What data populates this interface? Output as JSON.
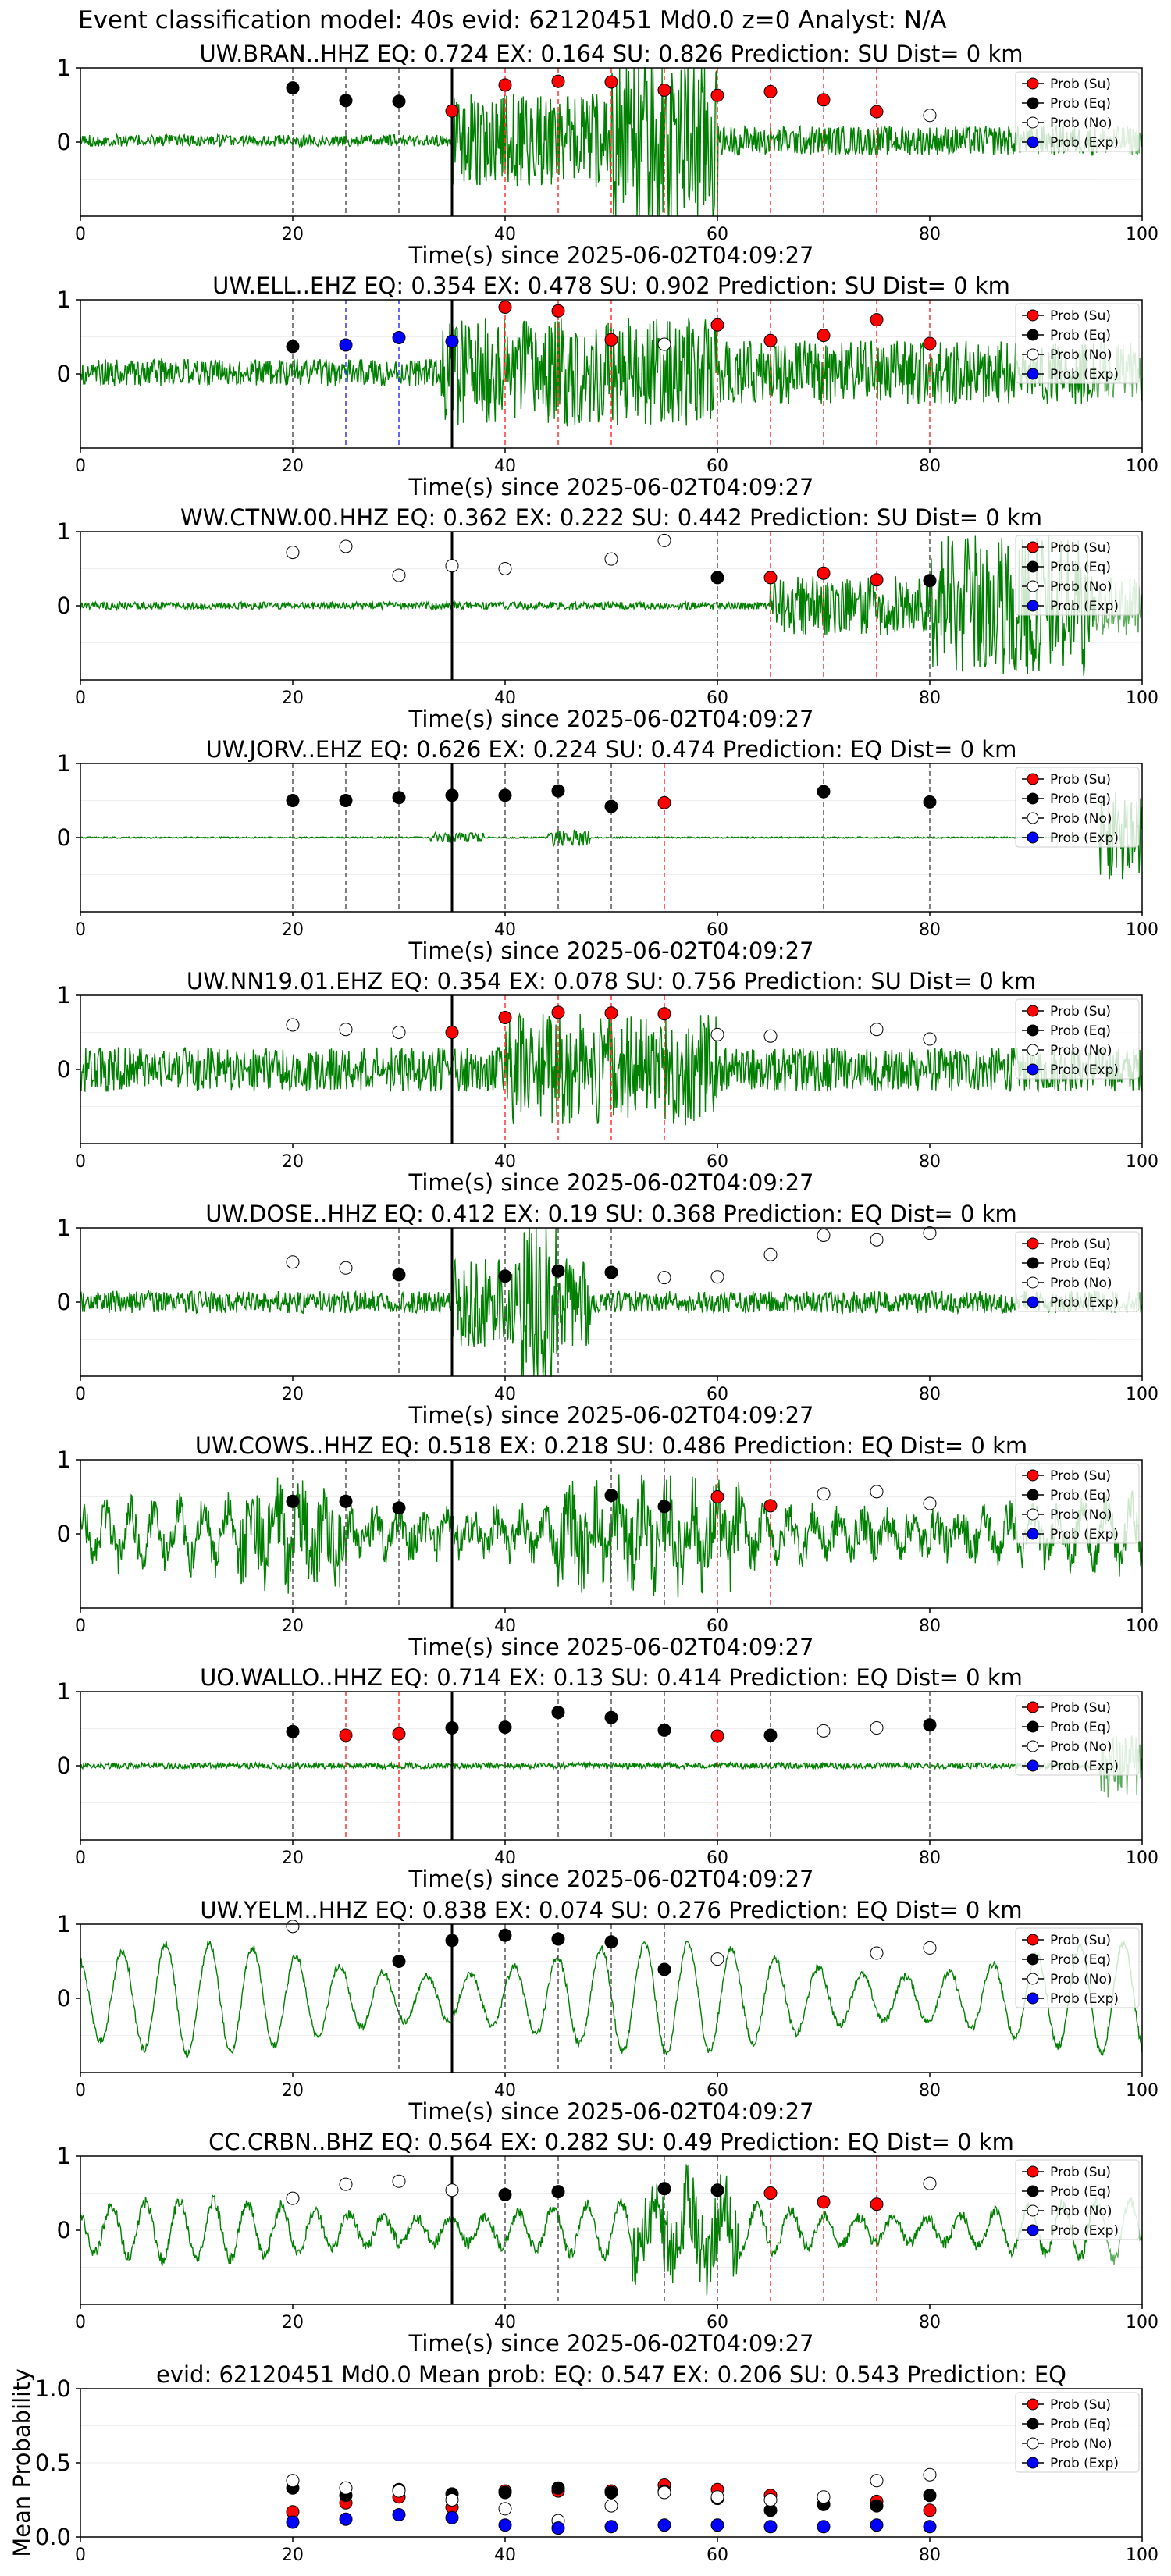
{
  "suptitle": "Event classification model: 40s evid: 62120451 Md0.0 z=0 Analyst: N/A",
  "legend": [
    "Prob (Su)",
    "Prob (Eq)",
    "Prob (No)",
    "Prob (Exp)"
  ],
  "colors": {
    "su": "#ff0000",
    "eq": "#000000",
    "no": "#ffffff",
    "exp": "#0000ff",
    "trace": "#008000",
    "eq_line": "#555555",
    "su_line": "#ff3333",
    "exp_line": "#3333ff"
  },
  "chart_data": [
    {
      "type": "line",
      "title": "UW.BRAN..HHZ    EQ: 0.724   EX: 0.164   SU: 0.826    Prediction: SU     Dist= 0 km",
      "xlabel": "Time(s) since 2025-06-02T04:09:27",
      "xlim": [
        0,
        100
      ],
      "ylim": [
        -1,
        1
      ],
      "xticks": [
        0,
        20,
        40,
        60,
        80,
        100
      ],
      "yticks": [
        0,
        1
      ],
      "event_time": 35,
      "trace": {
        "base": 0.02,
        "noise": 0.08,
        "bursts": [
          [
            35,
            60,
            0.55
          ],
          [
            50,
            60,
            0.65
          ],
          [
            60,
            100,
            0.12
          ]
        ],
        "period": 0,
        "amp": 0,
        "taper_end": 0.2
      },
      "points": [
        [
          20,
          "eq",
          0.73
        ],
        [
          25,
          "eq",
          0.56
        ],
        [
          30,
          "eq",
          0.55
        ],
        [
          35,
          "su",
          0.42
        ],
        [
          40,
          "su",
          0.77
        ],
        [
          45,
          "su",
          0.82
        ],
        [
          50,
          "su",
          0.81
        ],
        [
          55,
          "su",
          0.7
        ],
        [
          60,
          "su",
          0.63
        ],
        [
          65,
          "su",
          0.68
        ],
        [
          70,
          "su",
          0.57
        ],
        [
          75,
          "su",
          0.41
        ],
        [
          80,
          "no",
          0.36
        ]
      ]
    },
    {
      "type": "line",
      "title": "UW.ELL..EHZ   EQ: 0.354  EX: 0.478  SU: 0.902   Prediction: SU    Dist= 0 km",
      "xlabel": "Time(s) since 2025-06-02T04:09:27",
      "xlim": [
        0,
        100
      ],
      "ylim": [
        -1,
        1
      ],
      "xticks": [
        0,
        20,
        40,
        60,
        80,
        100
      ],
      "yticks": [
        0,
        1
      ],
      "event_time": 35,
      "trace": {
        "base": 0.02,
        "noise": 0.18,
        "bursts": [
          [
            34,
            60,
            0.55
          ],
          [
            60,
            100,
            0.25
          ]
        ],
        "period": 0,
        "amp": 0,
        "taper_end": 0.15
      },
      "points": [
        [
          20,
          "eq",
          0.37
        ],
        [
          25,
          "exp",
          0.39
        ],
        [
          30,
          "exp",
          0.49
        ],
        [
          35,
          "exp",
          0.44
        ],
        [
          40,
          "su",
          0.9
        ],
        [
          45,
          "su",
          0.85
        ],
        [
          50,
          "su",
          0.46
        ],
        [
          55,
          "no",
          0.4
        ],
        [
          60,
          "su",
          0.66
        ],
        [
          65,
          "su",
          0.45
        ],
        [
          70,
          "su",
          0.52
        ],
        [
          75,
          "su",
          0.73
        ],
        [
          80,
          "su",
          0.41
        ]
      ]
    },
    {
      "type": "line",
      "title": "WW.CTNW.00.HHZ    EQ: 0.362   EX: 0.222   SU: 0.442    Prediction: SU     Dist= 0 km",
      "xlabel": "Time(s) since 2025-06-02T04:09:27",
      "xlim": [
        0,
        100
      ],
      "ylim": [
        -1,
        1
      ],
      "xticks": [
        0,
        20,
        40,
        60,
        80,
        100
      ],
      "yticks": [
        0,
        1
      ],
      "event_time": 35,
      "trace": {
        "base": 0.0,
        "noise": 0.05,
        "bursts": [
          [
            65,
            100,
            0.35
          ],
          [
            80,
            95,
            0.55
          ]
        ],
        "period": 0,
        "amp": 0,
        "taper_end": 0.3
      },
      "points": [
        [
          20,
          "no",
          0.72
        ],
        [
          25,
          "no",
          0.8
        ],
        [
          30,
          "no",
          0.41
        ],
        [
          35,
          "no",
          0.54
        ],
        [
          40,
          "no",
          0.5
        ],
        [
          50,
          "no",
          0.63
        ],
        [
          55,
          "no",
          0.88
        ],
        [
          60,
          "eq",
          0.38
        ],
        [
          65,
          "su",
          0.38
        ],
        [
          70,
          "su",
          0.44
        ],
        [
          75,
          "su",
          0.35
        ],
        [
          80,
          "eq",
          0.34
        ]
      ]
    },
    {
      "type": "line",
      "title": "UW.JORV..EHZ    EQ: 0.626   EX: 0.224   SU: 0.474    Prediction: EQ     Dist= 0 km",
      "xlabel": "Time(s) since 2025-06-02T04:09:27",
      "xlim": [
        0,
        100
      ],
      "ylim": [
        -1,
        1
      ],
      "xticks": [
        0,
        20,
        40,
        60,
        80,
        100
      ],
      "yticks": [
        0,
        1
      ],
      "event_time": 35,
      "trace": {
        "base": 0.0,
        "noise": 0.01,
        "bursts": [
          [
            33,
            38,
            0.06
          ],
          [
            44,
            48,
            0.1
          ],
          [
            96,
            100,
            0.6
          ]
        ],
        "period": 0,
        "amp": 0,
        "taper_end": 0
      },
      "points": [
        [
          20,
          "eq",
          0.5
        ],
        [
          25,
          "eq",
          0.5
        ],
        [
          30,
          "eq",
          0.54
        ],
        [
          35,
          "eq",
          0.57
        ],
        [
          40,
          "eq",
          0.57
        ],
        [
          45,
          "eq",
          0.63
        ],
        [
          50,
          "eq",
          0.42
        ],
        [
          55,
          "su",
          0.47
        ],
        [
          70,
          "eq",
          0.62
        ],
        [
          80,
          "eq",
          0.48
        ]
      ]
    },
    {
      "type": "line",
      "title": "UW.NN19.01.EHZ    EQ: 0.354   EX: 0.078   SU: 0.756    Prediction: SU     Dist= 0 km",
      "xlabel": "Time(s) since 2025-06-02T04:09:27",
      "xlim": [
        0,
        100
      ],
      "ylim": [
        -1,
        1
      ],
      "xticks": [
        0,
        20,
        40,
        60,
        80,
        100
      ],
      "yticks": [
        0,
        1
      ],
      "event_time": 35,
      "trace": {
        "base": 0.0,
        "noise": 0.3,
        "bursts": [
          [
            40,
            60,
            0.45
          ]
        ],
        "period": 0,
        "amp": 0,
        "taper_end": 0
      },
      "points": [
        [
          20,
          "no",
          0.6
        ],
        [
          25,
          "no",
          0.54
        ],
        [
          30,
          "no",
          0.5
        ],
        [
          35,
          "su",
          0.5
        ],
        [
          40,
          "su",
          0.7
        ],
        [
          45,
          "su",
          0.77
        ],
        [
          50,
          "su",
          0.76
        ],
        [
          55,
          "su",
          0.75
        ],
        [
          60,
          "no",
          0.47
        ],
        [
          65,
          "no",
          0.45
        ],
        [
          75,
          "no",
          0.54
        ],
        [
          80,
          "no",
          0.41
        ]
      ]
    },
    {
      "type": "line",
      "title": "UW.DOSE..HHZ    EQ: 0.412   EX: 0.19   SU: 0.368    Prediction: EQ     Dist= 0 km",
      "xlabel": "Time(s) since 2025-06-02T04:09:27",
      "xlim": [
        0,
        100
      ],
      "ylim": [
        -1,
        1
      ],
      "xticks": [
        0,
        20,
        40,
        60,
        80,
        100
      ],
      "yticks": [
        0,
        1
      ],
      "event_time": 35,
      "trace": {
        "base": 0.0,
        "noise": 0.15,
        "bursts": [
          [
            35,
            48,
            0.45
          ],
          [
            41,
            45,
            0.7
          ]
        ],
        "period": 0,
        "amp": 0,
        "taper_end": 0.15
      },
      "points": [
        [
          20,
          "no",
          0.54
        ],
        [
          25,
          "no",
          0.46
        ],
        [
          30,
          "eq",
          0.37
        ],
        [
          40,
          "eq",
          0.35
        ],
        [
          45,
          "eq",
          0.42
        ],
        [
          50,
          "eq",
          0.4
        ],
        [
          55,
          "no",
          0.33
        ],
        [
          60,
          "no",
          0.34
        ],
        [
          65,
          "no",
          0.64
        ],
        [
          70,
          "no",
          0.9
        ],
        [
          75,
          "no",
          0.84
        ],
        [
          80,
          "no",
          0.93
        ]
      ]
    },
    {
      "type": "line",
      "title": "UW.COWS..HHZ    EQ: 0.518   EX: 0.218   SU: 0.486    Prediction: EQ     Dist= 0 km",
      "xlabel": "Time(s) since 2025-06-02T04:09:27",
      "xlim": [
        0,
        100
      ],
      "ylim": [
        -1,
        1
      ],
      "xticks": [
        0,
        20,
        40,
        60,
        80,
        100
      ],
      "yticks": [
        0,
        1
      ],
      "event_time": 35,
      "trace": {
        "base": 0.0,
        "noise": 0.25,
        "bursts": [
          [
            15,
            25,
            0.3
          ],
          [
            45,
            62,
            0.3
          ]
        ],
        "period": 2.3,
        "amp": 0.35,
        "taper_end": 0
      },
      "points": [
        [
          20,
          "eq",
          0.44
        ],
        [
          25,
          "eq",
          0.44
        ],
        [
          30,
          "eq",
          0.35
        ],
        [
          50,
          "eq",
          0.52
        ],
        [
          55,
          "eq",
          0.37
        ],
        [
          60,
          "su",
          0.5
        ],
        [
          65,
          "su",
          0.38
        ],
        [
          70,
          "no",
          0.54
        ],
        [
          75,
          "no",
          0.57
        ],
        [
          80,
          "no",
          0.41
        ]
      ]
    },
    {
      "type": "line",
      "title": "UO.WALLO..HHZ    EQ: 0.714   EX: 0.13   SU: 0.414    Prediction: EQ     Dist= 0 km",
      "xlabel": "Time(s) since 2025-06-02T04:09:27",
      "xlim": [
        0,
        100
      ],
      "ylim": [
        -1,
        1
      ],
      "xticks": [
        0,
        20,
        40,
        60,
        80,
        100
      ],
      "yticks": [
        0,
        1
      ],
      "event_time": 35,
      "trace": {
        "base": 0.0,
        "noise": 0.04,
        "bursts": [
          [
            96,
            100,
            0.4
          ]
        ],
        "period": 0,
        "amp": 0,
        "taper_end": 0.3
      },
      "points": [
        [
          20,
          "eq",
          0.46
        ],
        [
          25,
          "su",
          0.41
        ],
        [
          30,
          "su",
          0.43
        ],
        [
          35,
          "eq",
          0.51
        ],
        [
          40,
          "eq",
          0.52
        ],
        [
          45,
          "eq",
          0.72
        ],
        [
          50,
          "eq",
          0.65
        ],
        [
          55,
          "eq",
          0.48
        ],
        [
          60,
          "su",
          0.4
        ],
        [
          65,
          "eq",
          0.41
        ],
        [
          70,
          "no",
          0.47
        ],
        [
          75,
          "no",
          0.51
        ],
        [
          80,
          "eq",
          0.55
        ]
      ]
    },
    {
      "type": "line",
      "title": "UW.YELM..HHZ    EQ: 0.838   EX: 0.074   SU: 0.276    Prediction: EQ     Dist= 0 km",
      "xlabel": "Time(s) since 2025-06-02T04:09:27",
      "xlim": [
        0,
        100
      ],
      "ylim": [
        -1,
        1
      ],
      "xticks": [
        0,
        20,
        40,
        60,
        80,
        100
      ],
      "yticks": [
        0,
        1
      ],
      "event_time": 35,
      "trace": {
        "base": 0.0,
        "noise": 0.05,
        "bursts": [],
        "period": 4.1,
        "amp": 0.75,
        "taper_end": 0
      },
      "points": [
        [
          20,
          "no",
          0.97
        ],
        [
          30,
          "eq",
          0.5
        ],
        [
          35,
          "eq",
          0.78
        ],
        [
          40,
          "eq",
          0.85
        ],
        [
          45,
          "eq",
          0.8
        ],
        [
          50,
          "eq",
          0.76
        ],
        [
          55,
          "eq",
          0.39
        ],
        [
          60,
          "no",
          0.53
        ],
        [
          75,
          "no",
          0.61
        ],
        [
          80,
          "no",
          0.68
        ]
      ]
    },
    {
      "type": "line",
      "title": "CC.CRBN..BHZ    EQ: 0.564   EX: 0.282   SU: 0.49    Prediction: EQ     Dist= 0 km",
      "xlabel": "Time(s) since 2025-06-02T04:09:27",
      "xlim": [
        0,
        100
      ],
      "ylim": [
        -1,
        1
      ],
      "xticks": [
        0,
        20,
        40,
        60,
        80,
        100
      ],
      "yticks": [
        0,
        1
      ],
      "event_time": 35,
      "trace": {
        "base": 0.0,
        "noise": 0.08,
        "bursts": [
          [
            52,
            62,
            0.45
          ]
        ],
        "period": 3.2,
        "amp": 0.4,
        "taper_end": 0.15
      },
      "points": [
        [
          20,
          "no",
          0.43
        ],
        [
          25,
          "no",
          0.62
        ],
        [
          30,
          "no",
          0.66
        ],
        [
          35,
          "no",
          0.54
        ],
        [
          40,
          "eq",
          0.48
        ],
        [
          45,
          "eq",
          0.52
        ],
        [
          55,
          "eq",
          0.56
        ],
        [
          60,
          "eq",
          0.54
        ],
        [
          65,
          "su",
          0.5
        ],
        [
          70,
          "su",
          0.38
        ],
        [
          75,
          "su",
          0.35
        ],
        [
          80,
          "no",
          0.63
        ]
      ]
    },
    {
      "type": "scatter",
      "title": "evid: 62120451  Md0.0   Mean prob:    EQ: 0.547  EX: 0.206  SU: 0.543   Prediction: EQ",
      "ylabel": "Mean Probability",
      "xlim": [
        0,
        100
      ],
      "ylim": [
        0,
        1
      ],
      "xticks": [
        0,
        20,
        40,
        60,
        80,
        100
      ],
      "yticks": [
        0.0,
        0.5,
        1.0
      ],
      "ytick_labels": [
        "0.0",
        "0.5",
        "1.0"
      ],
      "x": [
        20,
        25,
        30,
        35,
        40,
        45,
        50,
        55,
        60,
        65,
        70,
        75,
        80
      ],
      "series": [
        {
          "name": "Prob (Su)",
          "key": "su",
          "values": [
            0.17,
            0.23,
            0.27,
            0.2,
            0.31,
            0.31,
            0.31,
            0.35,
            0.32,
            0.28,
            0.22,
            0.24,
            0.18
          ]
        },
        {
          "name": "Prob (Eq)",
          "key": "eq",
          "values": [
            0.33,
            0.28,
            0.32,
            0.29,
            0.3,
            0.33,
            0.3,
            0.31,
            0.26,
            0.18,
            0.22,
            0.21,
            0.28
          ]
        },
        {
          "name": "Prob (No)",
          "key": "no",
          "values": [
            0.38,
            0.33,
            0.31,
            0.25,
            0.19,
            0.11,
            0.21,
            0.3,
            0.27,
            0.25,
            0.27,
            0.38,
            0.42
          ]
        },
        {
          "name": "Prob (Exp)",
          "key": "exp",
          "values": [
            0.1,
            0.12,
            0.15,
            0.13,
            0.08,
            0.06,
            0.07,
            0.08,
            0.08,
            0.07,
            0.07,
            0.08,
            0.07
          ]
        }
      ]
    }
  ]
}
